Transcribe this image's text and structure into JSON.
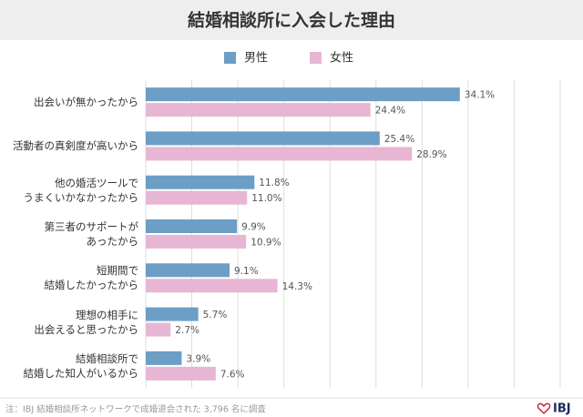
{
  "chart_data": {
    "type": "bar",
    "orientation": "horizontal",
    "title": "結婚相談所に入会した理由",
    "categories": [
      "出会いが無かったから",
      "活動者の真剣度が高いから",
      "他の婚活ツールで\nうまくいかなかったから",
      "第三者のサポートが\nあったから",
      "短期間で\n結婚したかったから",
      "理想の相手に\n出会えると思ったから",
      "結婚相談所で\n結婚した知人がいるから"
    ],
    "series": [
      {
        "name": "男性",
        "color": "#6c9ec6",
        "values": [
          34.1,
          25.4,
          11.8,
          9.9,
          9.1,
          5.7,
          3.9
        ],
        "value_labels": [
          "34.1%",
          "25.4%",
          "11.8%",
          "9.9%",
          "9.1%",
          "5.7%",
          "3.9%"
        ]
      },
      {
        "name": "女性",
        "color": "#e8b6d5",
        "values": [
          24.4,
          28.9,
          11.0,
          10.9,
          14.3,
          2.7,
          7.6
        ],
        "value_labels": [
          "24.4%",
          "28.9%",
          "11.0%",
          "10.9%",
          "14.3%",
          "2.7%",
          "7.6%"
        ]
      }
    ],
    "xlim": [
      0,
      45
    ],
    "xticks": [
      0,
      5,
      10,
      15,
      20,
      25,
      30,
      35,
      40,
      45
    ],
    "grid": true,
    "footnote": "注：IBJ 結婚相談所ネットワークで成婚退会された 3,796 名に調査",
    "logo": "IBJ"
  }
}
